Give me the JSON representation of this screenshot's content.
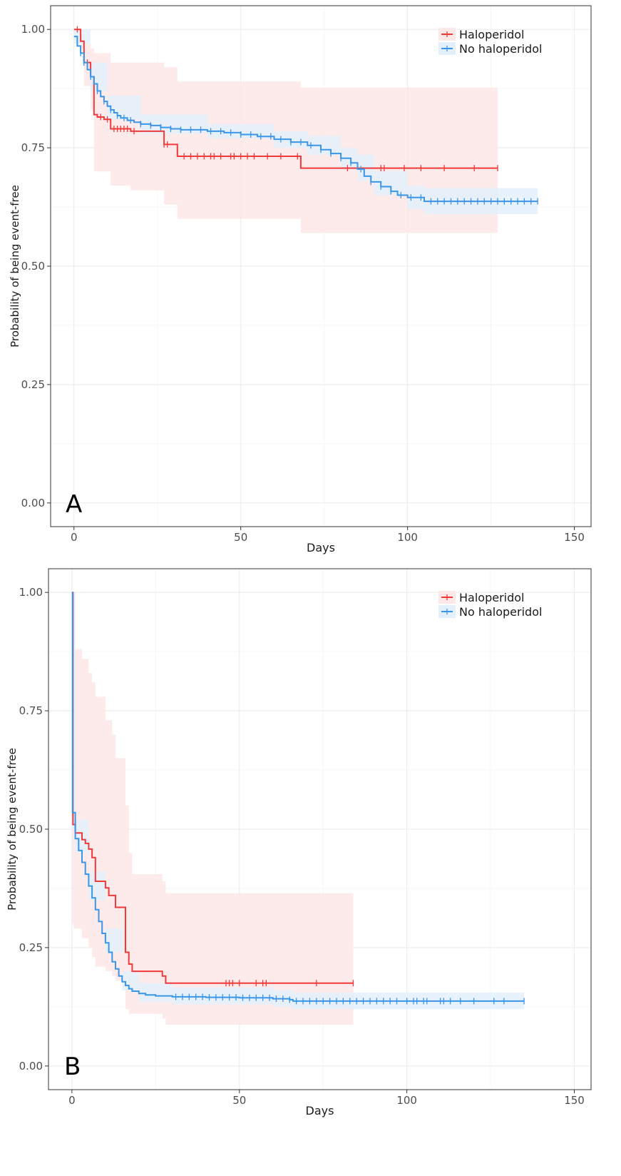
{
  "chart_data": [
    {
      "type": "line",
      "panel_label": "A",
      "xlabel": "Days",
      "ylabel": "Probability of being event-free",
      "xlim": [
        -7,
        155
      ],
      "ylim": [
        -0.05,
        1.05
      ],
      "x_ticks": [
        0,
        50,
        100,
        150
      ],
      "x_tick_labels": [
        "0",
        "50",
        "100",
        "150"
      ],
      "y_ticks": [
        0,
        0.25,
        0.5,
        0.75,
        1
      ],
      "y_tick_labels": [
        "0.00",
        "0.25",
        "0.50",
        "0.75",
        "1.00"
      ],
      "grid": true,
      "legend_position": "top-right",
      "series": [
        {
          "name": "Haloperidol",
          "color": "#F8766D",
          "line_color": "#F03A3A",
          "band_color": "#FDE8E7",
          "steps": [
            [
              0,
              1.0
            ],
            [
              2,
              0.975
            ],
            [
              3,
              0.93
            ],
            [
              5,
              0.9
            ],
            [
              6,
              0.82
            ],
            [
              7,
              0.815
            ],
            [
              9,
              0.81
            ],
            [
              11,
              0.79
            ],
            [
              17,
              0.785
            ],
            [
              27,
              0.757
            ],
            [
              31,
              0.732
            ],
            [
              68,
              0.707
            ],
            [
              127,
              0.707
            ]
          ],
          "band": [
            [
              0,
              1.0,
              1.0
            ],
            [
              2,
              0.99,
              0.96
            ],
            [
              3,
              0.97,
              0.88
            ],
            [
              5,
              0.96,
              0.83
            ],
            [
              6,
              0.95,
              0.7
            ],
            [
              7,
              0.95,
              0.7
            ],
            [
              11,
              0.93,
              0.67
            ],
            [
              17,
              0.93,
              0.66
            ],
            [
              27,
              0.92,
              0.63
            ],
            [
              31,
              0.89,
              0.6
            ],
            [
              68,
              0.877,
              0.57
            ],
            [
              127,
              0.877,
              0.57
            ]
          ],
          "censor_x": [
            1,
            4,
            8,
            10,
            12,
            13,
            14,
            15,
            16,
            18,
            27,
            28,
            33,
            35,
            37,
            39,
            41,
            42,
            44,
            47,
            48,
            50,
            52,
            54,
            58,
            62,
            67,
            82,
            92,
            93,
            99,
            104,
            111,
            120,
            127
          ]
        },
        {
          "name": "No haloperidol",
          "color": "#00BFC4",
          "line_color": "#3A96E8",
          "band_color": "#E3F0FB",
          "steps": [
            [
              0,
              0.985
            ],
            [
              1,
              0.965
            ],
            [
              2,
              0.95
            ],
            [
              3,
              0.93
            ],
            [
              4,
              0.915
            ],
            [
              5,
              0.9
            ],
            [
              6,
              0.885
            ],
            [
              7,
              0.87
            ],
            [
              8,
              0.858
            ],
            [
              9,
              0.848
            ],
            [
              10,
              0.838
            ],
            [
              11,
              0.83
            ],
            [
              12,
              0.824
            ],
            [
              13,
              0.818
            ],
            [
              14,
              0.813
            ],
            [
              16,
              0.808
            ],
            [
              18,
              0.804
            ],
            [
              20,
              0.8
            ],
            [
              23,
              0.797
            ],
            [
              26,
              0.793
            ],
            [
              29,
              0.79
            ],
            [
              32,
              0.788
            ],
            [
              40,
              0.785
            ],
            [
              45,
              0.782
            ],
            [
              50,
              0.778
            ],
            [
              55,
              0.774
            ],
            [
              60,
              0.768
            ],
            [
              65,
              0.762
            ],
            [
              70,
              0.755
            ],
            [
              74,
              0.746
            ],
            [
              77,
              0.738
            ],
            [
              80,
              0.728
            ],
            [
              83,
              0.718
            ],
            [
              85,
              0.705
            ],
            [
              87,
              0.69
            ],
            [
              89,
              0.678
            ],
            [
              92,
              0.668
            ],
            [
              95,
              0.658
            ],
            [
              97,
              0.65
            ],
            [
              100,
              0.645
            ],
            [
              105,
              0.637
            ],
            [
              139,
              0.637
            ]
          ],
          "band": [
            [
              0,
              1.0,
              0.97
            ],
            [
              5,
              0.93,
              0.87
            ],
            [
              10,
              0.86,
              0.81
            ],
            [
              20,
              0.82,
              0.78
            ],
            [
              40,
              0.8,
              0.77
            ],
            [
              60,
              0.785,
              0.75
            ],
            [
              70,
              0.775,
              0.735
            ],
            [
              80,
              0.75,
              0.705
            ],
            [
              85,
              0.735,
              0.68
            ],
            [
              90,
              0.7,
              0.65
            ],
            [
              100,
              0.67,
              0.62
            ],
            [
              105,
              0.665,
              0.61
            ],
            [
              139,
              0.665,
              0.61
            ]
          ],
          "censor_x": [
            2,
            3,
            5,
            7,
            9,
            11,
            13,
            15,
            17,
            20,
            23,
            26,
            29,
            32,
            35,
            38,
            41,
            44,
            47,
            50,
            53,
            56,
            59,
            62,
            65,
            68,
            71,
            74,
            77,
            80,
            83,
            86,
            89,
            92,
            95,
            98,
            101,
            104,
            107,
            109,
            111,
            113,
            115,
            117,
            119,
            121,
            123,
            125,
            127,
            129,
            131,
            133,
            135,
            137,
            139
          ]
        }
      ]
    },
    {
      "type": "line",
      "panel_label": "B",
      "xlabel": "Days",
      "ylabel": "Probability of being event-free",
      "xlim": [
        -7,
        155
      ],
      "ylim": [
        -0.05,
        1.05
      ],
      "x_ticks": [
        0,
        50,
        100,
        150
      ],
      "x_tick_labels": [
        "0",
        "50",
        "100",
        "150"
      ],
      "y_ticks": [
        0,
        0.25,
        0.5,
        0.75,
        1
      ],
      "y_tick_labels": [
        "0.00",
        "0.25",
        "0.50",
        "0.75",
        "1.00"
      ],
      "grid": true,
      "legend_position": "top-right",
      "series": [
        {
          "name": "Haloperidol",
          "color": "#F8766D",
          "line_color": "#F03A3A",
          "band_color": "#FDE8E7",
          "steps": [
            [
              0,
              1.0
            ],
            [
              0.3,
              0.51
            ],
            [
              1,
              0.492
            ],
            [
              3,
              0.478
            ],
            [
              4,
              0.47
            ],
            [
              5,
              0.458
            ],
            [
              6,
              0.44
            ],
            [
              7,
              0.39
            ],
            [
              10,
              0.376
            ],
            [
              11,
              0.36
            ],
            [
              13,
              0.335
            ],
            [
              16,
              0.24
            ],
            [
              17,
              0.215
            ],
            [
              18,
              0.2
            ],
            [
              27,
              0.19
            ],
            [
              28,
              0.175
            ],
            [
              84,
              0.175
            ]
          ],
          "band": [
            [
              0,
              1.0,
              0.3
            ],
            [
              0.5,
              0.88,
              0.29
            ],
            [
              3,
              0.86,
              0.27
            ],
            [
              5,
              0.83,
              0.25
            ],
            [
              6,
              0.81,
              0.23
            ],
            [
              7,
              0.78,
              0.21
            ],
            [
              10,
              0.73,
              0.2
            ],
            [
              12,
              0.7,
              0.19
            ],
            [
              13,
              0.65,
              0.18
            ],
            [
              16,
              0.55,
              0.12
            ],
            [
              17,
              0.45,
              0.11
            ],
            [
              18,
              0.405,
              0.11
            ],
            [
              27,
              0.39,
              0.1
            ],
            [
              28,
              0.365,
              0.087
            ],
            [
              84,
              0.365,
              0.087
            ]
          ],
          "censor_x": [
            46,
            47,
            48,
            50,
            55,
            57,
            58,
            73,
            84
          ]
        },
        {
          "name": "No haloperidol",
          "color": "#00BFC4",
          "line_color": "#3A96E8",
          "band_color": "#E3F0FB",
          "steps": [
            [
              0,
              1.0
            ],
            [
              0.2,
              0.535
            ],
            [
              1,
              0.48
            ],
            [
              2,
              0.455
            ],
            [
              3,
              0.43
            ],
            [
              4,
              0.405
            ],
            [
              5,
              0.38
            ],
            [
              6,
              0.355
            ],
            [
              7,
              0.33
            ],
            [
              8,
              0.305
            ],
            [
              9,
              0.28
            ],
            [
              10,
              0.26
            ],
            [
              11,
              0.24
            ],
            [
              12,
              0.22
            ],
            [
              13,
              0.205
            ],
            [
              14,
              0.19
            ],
            [
              15,
              0.178
            ],
            [
              16,
              0.17
            ],
            [
              17,
              0.163
            ],
            [
              18,
              0.158
            ],
            [
              20,
              0.153
            ],
            [
              22,
              0.15
            ],
            [
              25,
              0.148
            ],
            [
              30,
              0.146
            ],
            [
              40,
              0.145
            ],
            [
              50,
              0.144
            ],
            [
              60,
              0.142
            ],
            [
              65,
              0.14
            ],
            [
              66,
              0.137
            ],
            [
              135,
              0.137
            ]
          ],
          "band": [
            [
              0,
              1.0,
              0.5
            ],
            [
              1,
              0.52,
              0.45
            ],
            [
              5,
              0.41,
              0.35
            ],
            [
              10,
              0.29,
              0.24
            ],
            [
              15,
              0.2,
              0.16
            ],
            [
              20,
              0.175,
              0.135
            ],
            [
              30,
              0.165,
              0.13
            ],
            [
              60,
              0.16,
              0.125
            ],
            [
              66,
              0.155,
              0.12
            ],
            [
              135,
              0.155,
              0.12
            ]
          ],
          "censor_x": [
            31,
            33,
            35,
            37,
            39,
            41,
            43,
            45,
            47,
            49,
            51,
            53,
            55,
            57,
            59,
            61,
            63,
            65,
            67,
            69,
            71,
            73,
            75,
            77,
            79,
            81,
            83,
            85,
            87,
            89,
            91,
            93,
            95,
            97,
            100,
            102,
            103,
            105,
            106,
            110,
            111,
            113,
            116,
            120,
            126,
            129,
            135
          ]
        }
      ]
    }
  ]
}
